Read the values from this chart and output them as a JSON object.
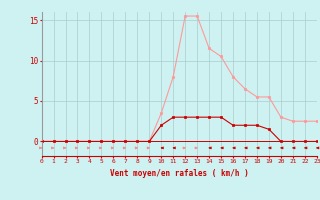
{
  "x": [
    0,
    1,
    2,
    3,
    4,
    5,
    6,
    7,
    8,
    9,
    10,
    11,
    12,
    13,
    14,
    15,
    16,
    17,
    18,
    19,
    20,
    21,
    22,
    23
  ],
  "y_rafales": [
    0.0,
    0.0,
    0.0,
    0.0,
    0.0,
    0.0,
    0.0,
    0.0,
    0.0,
    0.0,
    3.5,
    8.0,
    15.5,
    15.5,
    11.5,
    10.5,
    8.0,
    6.5,
    5.5,
    5.5,
    3.0,
    2.5,
    2.5,
    2.5
  ],
  "y_moyen": [
    0.0,
    0.0,
    0.0,
    0.0,
    0.0,
    0.0,
    0.0,
    0.0,
    0.0,
    0.0,
    2.0,
    3.0,
    3.0,
    3.0,
    3.0,
    3.0,
    2.0,
    2.0,
    2.0,
    1.5,
    0.0,
    0.0,
    0.0,
    0.0
  ],
  "xlabel": "Vent moyen/en rafales ( km/h )",
  "ylim": [
    0,
    16
  ],
  "yticks": [
    0,
    5,
    10,
    15
  ],
  "xlim": [
    0,
    23
  ],
  "bg_color": "#cef2f2",
  "grid_color": "#aacccc",
  "line_color_rafales": "#ff9999",
  "line_color_moyen": "#cc0000",
  "arrow_directions": [
    1,
    1,
    1,
    1,
    1,
    1,
    1,
    1,
    1,
    1,
    -1,
    -1,
    1,
    1,
    -1,
    -1,
    -1,
    -1,
    -1,
    -1,
    -1,
    -1,
    -1,
    -1
  ]
}
